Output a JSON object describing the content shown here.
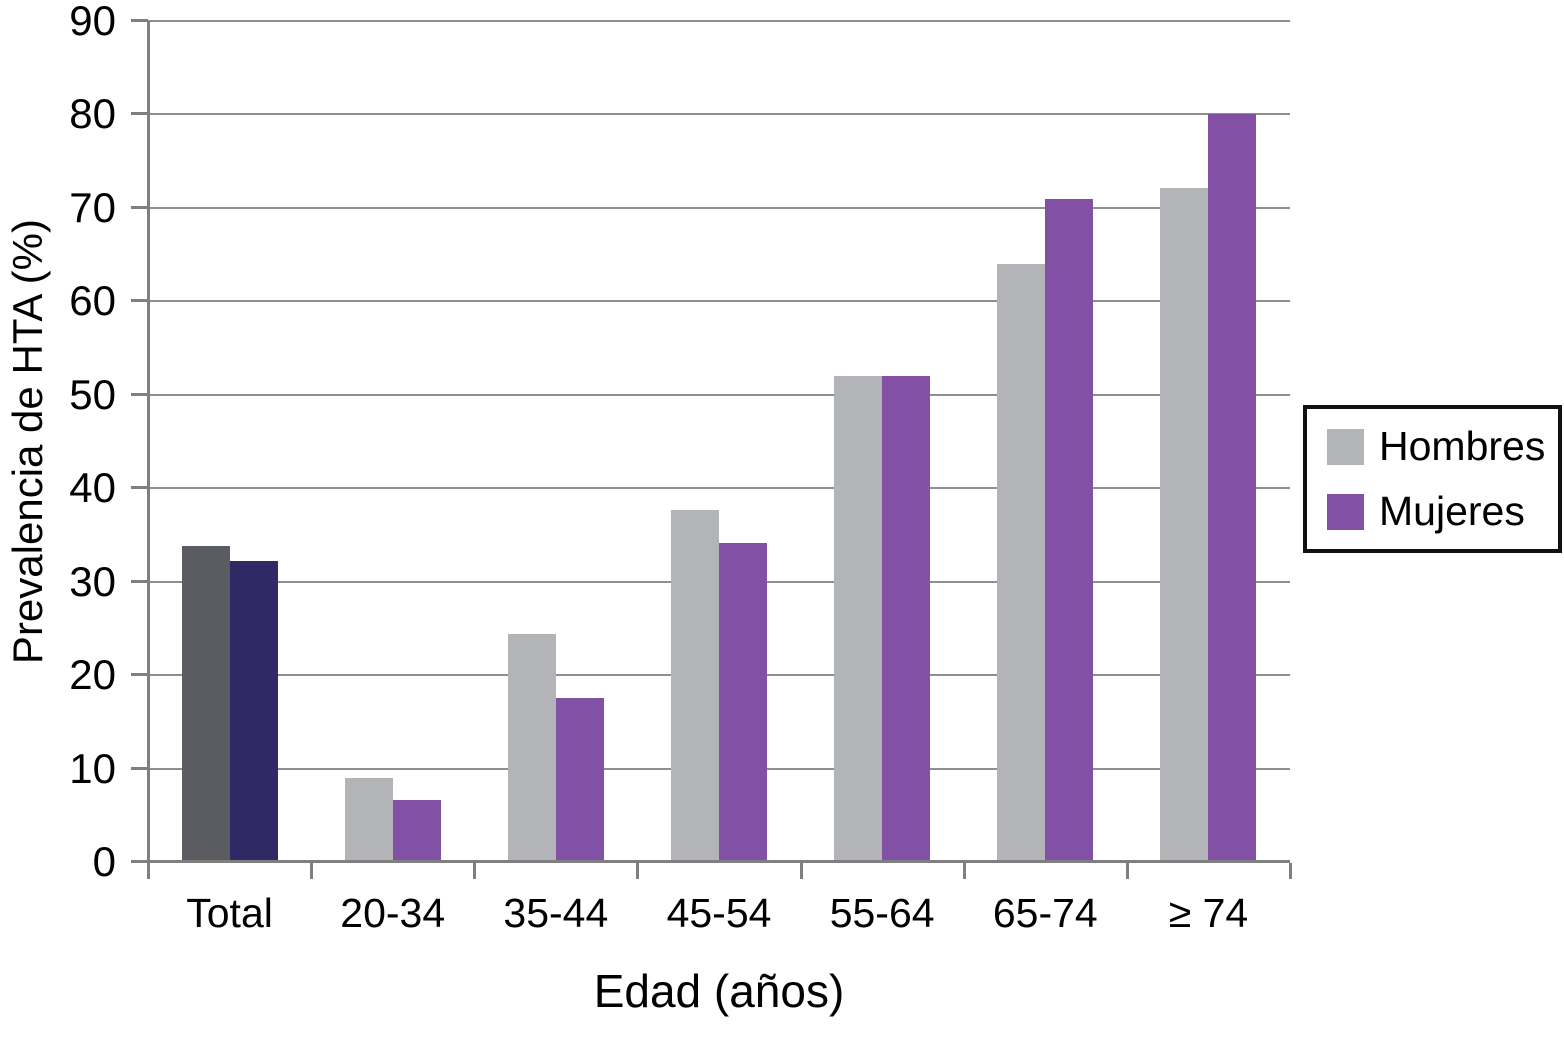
{
  "chart_data": {
    "type": "bar",
    "title": "",
    "xlabel": "Edad (años)",
    "ylabel": "Prevalencia de HTA (%)",
    "ylim": [
      0,
      90
    ],
    "yticks": [
      0,
      10,
      20,
      30,
      40,
      50,
      60,
      70,
      80,
      90
    ],
    "grid": true,
    "categories": [
      "Total",
      "20-34",
      "35-44",
      "45-54",
      "55-64",
      "65-74",
      "≥ 74"
    ],
    "series": [
      {
        "name": "Hombres",
        "color": "#b3b4b8",
        "total_color": "#5a5c61",
        "values": [
          33.8,
          9.0,
          24.4,
          37.7,
          52.0,
          64.0,
          72.1
        ]
      },
      {
        "name": "Mujeres",
        "color": "#8251a5",
        "total_color": "#2f2a66",
        "values": [
          32.2,
          6.6,
          17.6,
          34.1,
          52.0,
          71.0,
          80.0
        ]
      }
    ],
    "legend": {
      "position": "right",
      "entries": [
        "Hombres",
        "Mujeres"
      ]
    },
    "axis_color": "#7f7f7f",
    "grid_color": "#8f8f8f",
    "text_color": "#000000"
  }
}
